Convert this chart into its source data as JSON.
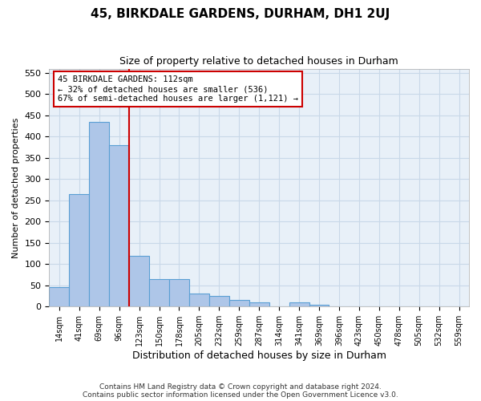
{
  "title": "45, BIRKDALE GARDENS, DURHAM, DH1 2UJ",
  "subtitle": "Size of property relative to detached houses in Durham",
  "xlabel": "Distribution of detached houses by size in Durham",
  "ylabel": "Number of detached properties",
  "footer_line1": "Contains HM Land Registry data © Crown copyright and database right 2024.",
  "footer_line2": "Contains public sector information licensed under the Open Government Licence v3.0.",
  "bin_labels": [
    "14sqm",
    "41sqm",
    "69sqm",
    "96sqm",
    "123sqm",
    "150sqm",
    "178sqm",
    "205sqm",
    "232sqm",
    "259sqm",
    "287sqm",
    "314sqm",
    "341sqm",
    "369sqm",
    "396sqm",
    "423sqm",
    "450sqm",
    "478sqm",
    "505sqm",
    "532sqm",
    "559sqm"
  ],
  "bar_heights": [
    45,
    265,
    435,
    380,
    120,
    65,
    65,
    30,
    25,
    15,
    10,
    0,
    10,
    5,
    0,
    0,
    0,
    0,
    0,
    0,
    0
  ],
  "bar_color": "#aec6e8",
  "bar_edge_color": "#5a9fd4",
  "grid_color": "#c8d8e8",
  "bg_color": "#e8f0f8",
  "red_line_color": "#cc0000",
  "annotation_text_line1": "45 BIRKDALE GARDENS: 112sqm",
  "annotation_text_line2": "← 32% of detached houses are smaller (536)",
  "annotation_text_line3": "67% of semi-detached houses are larger (1,121) →",
  "annotation_box_color": "#cc0000",
  "ylim": [
    0,
    560
  ],
  "yticks": [
    0,
    50,
    100,
    150,
    200,
    250,
    300,
    350,
    400,
    450,
    500,
    550
  ]
}
